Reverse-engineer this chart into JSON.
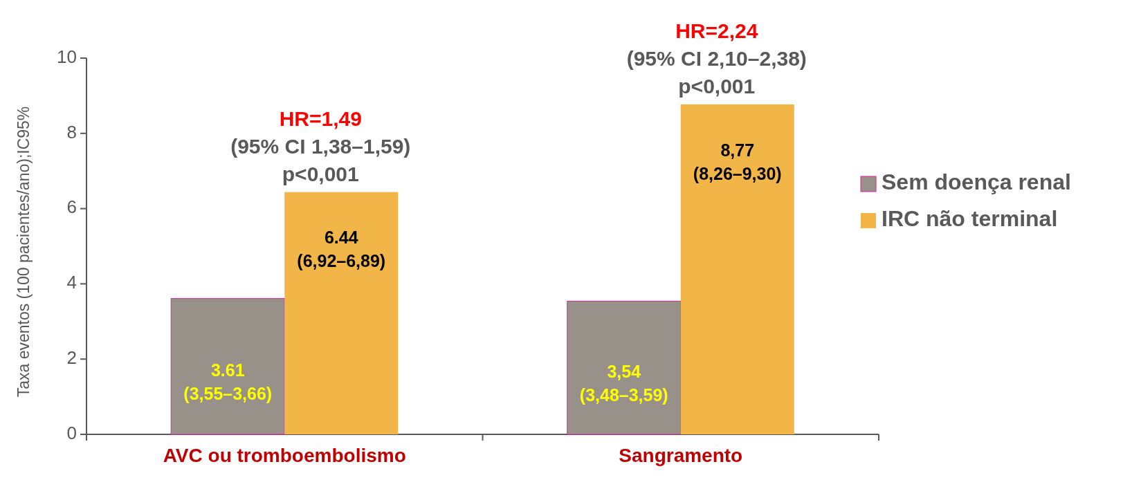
{
  "chart_data": {
    "type": "bar",
    "ylabel": "Taxa eventos (100 pacientes/ano);IC95%",
    "categories": [
      "AVC ou tromboembolismo",
      "Sangramento"
    ],
    "series": [
      {
        "name": "Sem doença renal",
        "color": "#979189",
        "values": [
          3.61,
          3.54
        ],
        "value_labels": [
          "3.61\n(3,55–3,66)",
          "3,54\n(3,48–3,59)"
        ]
      },
      {
        "name": "IRC não terminal",
        "color": "#f2b547",
        "values": [
          6.44,
          8.77
        ],
        "value_labels": [
          "6.44\n(6,92–6,89)",
          "8,77\n(8,26–9,30)"
        ]
      }
    ],
    "ylim": [
      0,
      10
    ],
    "yticks": [
      0,
      2,
      4,
      6,
      8,
      10
    ],
    "legend": "right",
    "annotations": [
      "HR=1,49",
      "(95% CI 1,38–1,59)",
      "p<0,001",
      "HR=2,24",
      "(95% CI 2,10–2,38)",
      "p<0,001"
    ]
  }
}
